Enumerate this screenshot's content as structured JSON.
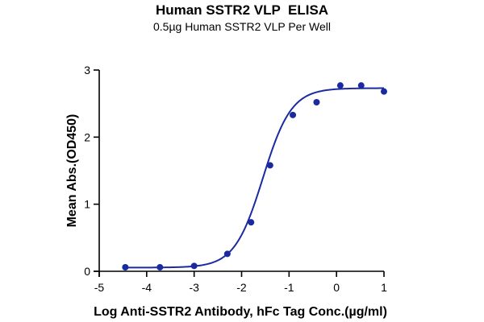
{
  "chart_data": {
    "type": "scatter",
    "title": "Human SSTR2 VLP  ELISA",
    "subtitle": "0.5µg Human SSTR2 VLP Per Well",
    "xlabel": "Log Anti-SSTR2 Antibody, hFc Tag Conc.(µg/ml)",
    "ylabel": "Mean Abs.(OD450)",
    "xlim": [
      -5,
      1
    ],
    "ylim": [
      0,
      3
    ],
    "xticks": [
      -5,
      -4,
      -3,
      -2,
      -1,
      0,
      1
    ],
    "yticks": [
      0,
      1,
      2,
      3
    ],
    "grid": false,
    "color": "#1a2aa0",
    "series": [
      {
        "x": [
          -4.45,
          -3.72,
          -3.0,
          -2.3,
          -1.8,
          -1.4,
          -0.92,
          -0.42,
          0.08,
          0.52,
          1.0
        ],
        "y": [
          0.06,
          0.06,
          0.08,
          0.26,
          0.73,
          1.58,
          2.33,
          2.52,
          2.77,
          2.77,
          2.68
        ]
      }
    ],
    "fit": {
      "model": "4PL",
      "bottom": 0.055,
      "top": 2.73,
      "logEC50": -1.55,
      "hill": 1.45
    }
  }
}
